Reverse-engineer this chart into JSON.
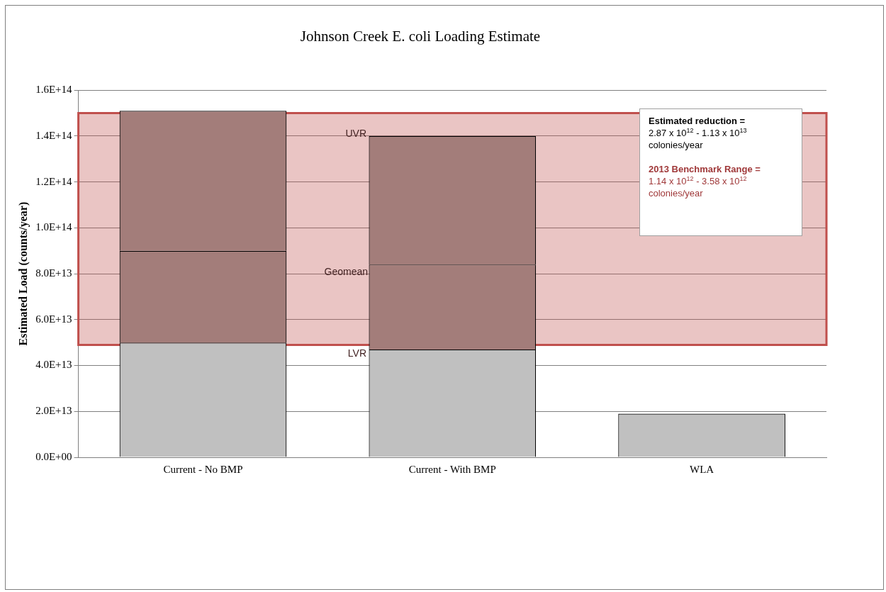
{
  "chart_data": {
    "type": "bar",
    "title": "Johnson Creek E. coli Loading Estimate",
    "ylabel": "Estimated Load (counts/year)",
    "categories": [
      "Current - No BMP",
      "Current - With BMP",
      "WLA"
    ],
    "stacked": true,
    "series": [
      {
        "color": "#c0c0c0",
        "values": [
          50000000000000.0,
          47000000000000.0,
          19000000000000.0
        ]
      },
      {
        "color": "#a37d7a",
        "values": [
          40000000000000.0,
          37000000000000.0,
          null
        ]
      },
      {
        "color": "#a37d7a",
        "values": [
          61000000000000.0,
          56000000000000.0,
          null
        ]
      }
    ],
    "ylim": [
      0,
      160000000000000.0
    ],
    "yticks": [
      {
        "value": 0,
        "label": "0.0E+00"
      },
      {
        "value": 20000000000000.0,
        "label": "2.0E+13"
      },
      {
        "value": 40000000000000.0,
        "label": "4.0E+13"
      },
      {
        "value": 60000000000000.0,
        "label": "6.0E+13"
      },
      {
        "value": 80000000000000.0,
        "label": "8.0E+13"
      },
      {
        "value": 100000000000000.0,
        "label": "1.0E+14"
      },
      {
        "value": 120000000000000.0,
        "label": "1.2E+14"
      },
      {
        "value": 140000000000000.0,
        "label": "1.4E+14"
      },
      {
        "value": 160000000000000.0,
        "label": "1.6E+14"
      }
    ],
    "grid": "y",
    "legend": false,
    "bands": [
      {
        "axis": "y",
        "from": 49000000000000.0,
        "to": 150000000000000.0,
        "color": "#c0504d"
      }
    ],
    "annotations": [
      "UVR",
      "Geomean",
      "LVR",
      "Estimated reduction =",
      "2.87 x 10$^{12}$ - 1.13 x 10$^{13}$ colonies/year",
      "2013 Benchmark Range =",
      "1.14 x 10$^{12}$ - 3.58 x 10$^{12}$ colonies/year"
    ]
  }
}
